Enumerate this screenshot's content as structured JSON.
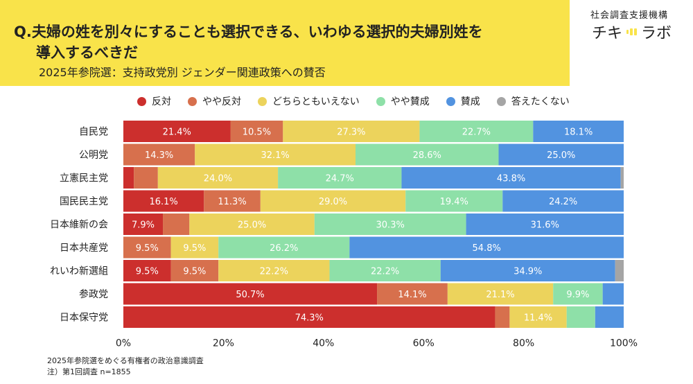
{
  "header": {
    "question_line1": "Q.夫婦の姓を別々にすることも選択できる、いわゆる選択的夫婦別姓を",
    "question_line2": "導入するべきだ",
    "subtitle": "2025年参院選：支持政党別 ジェンダー関連政策への賛否"
  },
  "brand": {
    "tagline": "社会調査支援機構",
    "name_left": "チキ",
    "name_right": "ラボ"
  },
  "footnote": {
    "line1": "2025年参院選をめぐる有権者の政治意識調査",
    "line2": "注）第1回調査 n=1855"
  },
  "chart_data": {
    "type": "bar",
    "orientation": "horizontal",
    "stacked": true,
    "percent_stacked": true,
    "title": "2025年参院選：支持政党別 ジェンダー関連政策への賛否",
    "xlabel": "",
    "ylabel": "",
    "xlim": [
      0,
      100
    ],
    "x_ticks": [
      "0%",
      "20%",
      "40%",
      "60%",
      "80%",
      "100%"
    ],
    "legend_position": "top",
    "categories": [
      "自民党",
      "公明党",
      "立憲民主党",
      "国民民主党",
      "日本維新の会",
      "日本共産党",
      "れいわ新選組",
      "参政党",
      "日本保守党"
    ],
    "series": [
      {
        "name": "反対",
        "color": "#cc2f2d",
        "values": [
          21.4,
          0,
          2.1,
          16.1,
          7.9,
          0,
          9.5,
          50.7,
          74.3
        ],
        "labels": [
          "21.4%",
          "",
          "",
          "16.1%",
          "7.9%",
          "",
          "9.5%",
          "50.7%",
          "74.3%"
        ]
      },
      {
        "name": "やや反対",
        "color": "#d7704d",
        "values": [
          10.5,
          14.3,
          4.8,
          11.3,
          5.3,
          9.5,
          9.5,
          14.1,
          2.9
        ],
        "labels": [
          "10.5%",
          "14.3%",
          "",
          "11.3%",
          "",
          "9.5%",
          "9.5%",
          "14.1%",
          ""
        ]
      },
      {
        "name": "どちらともいえない",
        "color": "#ecd35c",
        "values": [
          27.3,
          32.1,
          24.0,
          29.0,
          25.0,
          9.5,
          22.2,
          21.1,
          11.4
        ],
        "labels": [
          "27.3%",
          "32.1%",
          "24.0%",
          "29.0%",
          "25.0%",
          "9.5%",
          "22.2%",
          "21.1%",
          "11.4%"
        ]
      },
      {
        "name": "やや賛成",
        "color": "#8ee0a8",
        "values": [
          22.7,
          28.6,
          24.7,
          19.4,
          30.3,
          26.2,
          22.2,
          9.9,
          5.7
        ],
        "labels": [
          "22.7%",
          "28.6%",
          "24.7%",
          "19.4%",
          "30.3%",
          "26.2%",
          "22.2%",
          "9.9%",
          ""
        ]
      },
      {
        "name": "賛成",
        "color": "#5293e0",
        "values": [
          18.1,
          25.0,
          43.8,
          24.2,
          31.6,
          54.8,
          34.9,
          4.2,
          5.7
        ],
        "labels": [
          "18.1%",
          "25.0%",
          "43.8%",
          "24.2%",
          "31.6%",
          "54.8%",
          "34.9%",
          "",
          ""
        ]
      },
      {
        "name": "答えたくない",
        "color": "#a5a5a5",
        "values": [
          0,
          0,
          0.6,
          0,
          0,
          0,
          1.7,
          0,
          0
        ],
        "labels": [
          "",
          "",
          "",
          "",
          "",
          "",
          "",
          "",
          ""
        ]
      }
    ]
  }
}
